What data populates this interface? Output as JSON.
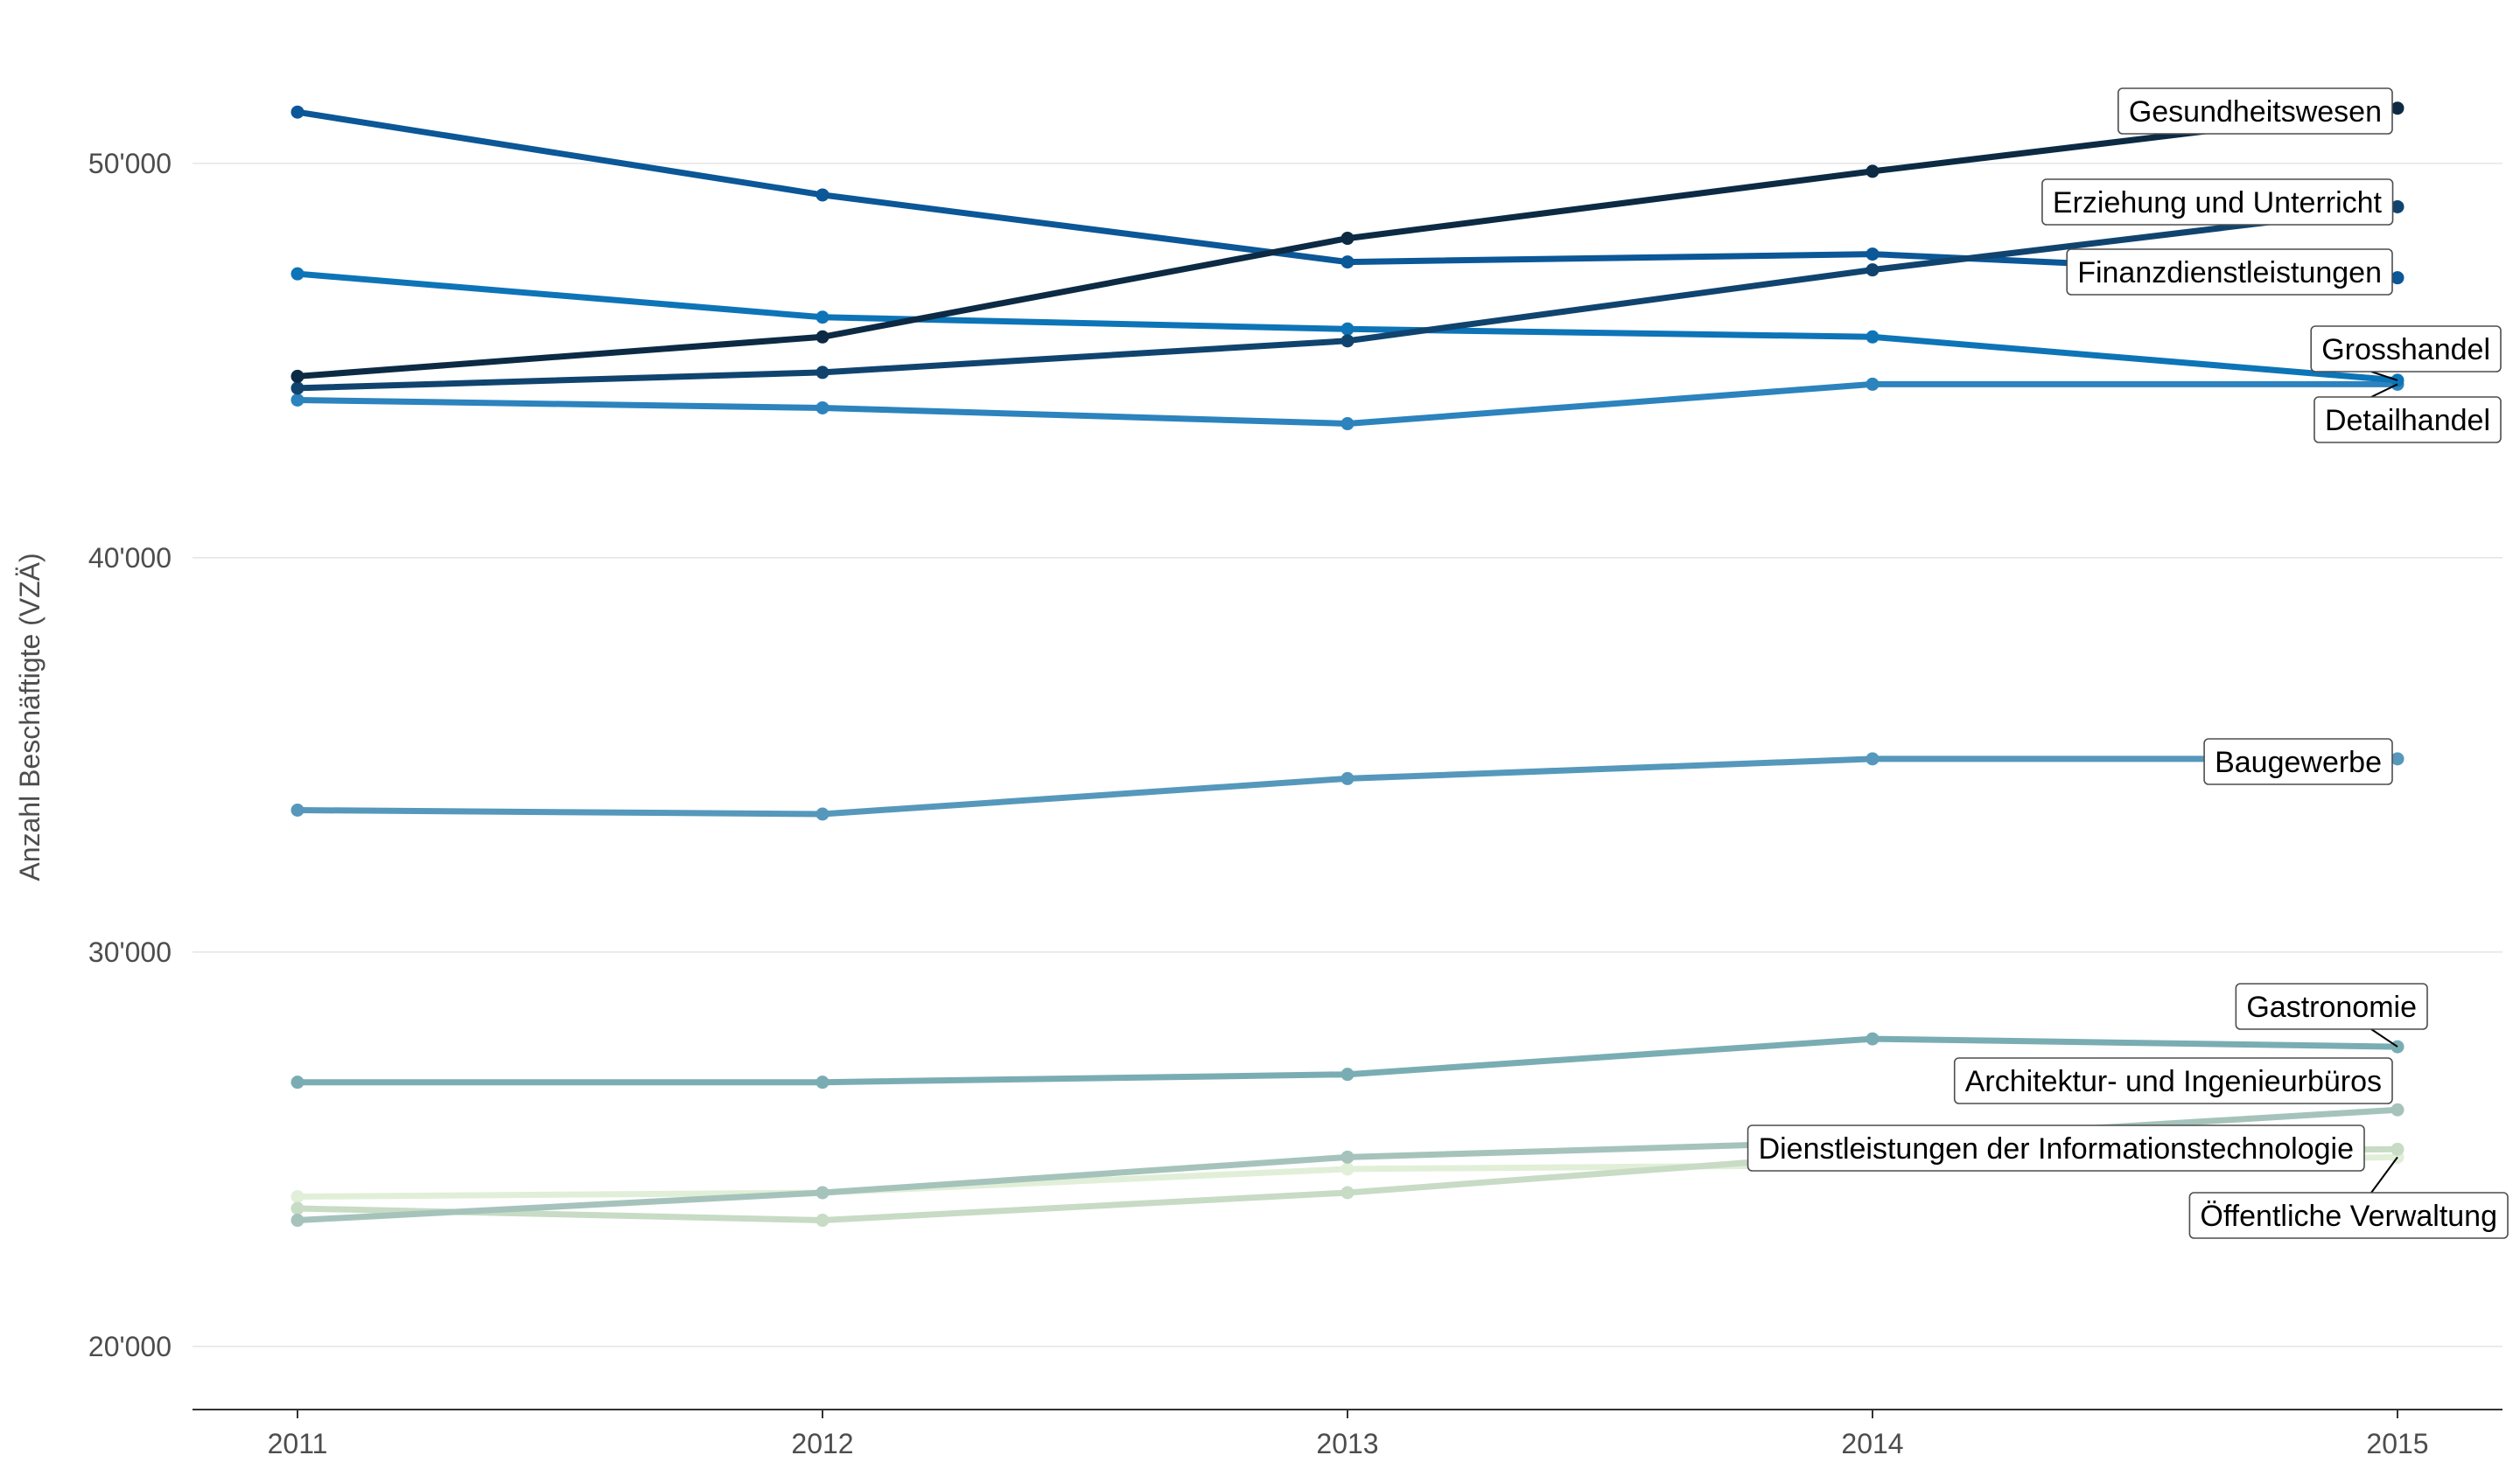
{
  "chart_data": {
    "type": "line",
    "title": "",
    "xlabel": "",
    "ylabel": "Anzahl Beschäftigte (VZÄ)",
    "x": [
      2011,
      2012,
      2013,
      2014,
      2015
    ],
    "x_tick_labels": [
      "2011",
      "2012",
      "2013",
      "2014",
      "2015"
    ],
    "y_ticks": [
      20000,
      30000,
      40000,
      50000
    ],
    "y_tick_labels": [
      "20'000",
      "30'000",
      "40'000",
      "50'000"
    ],
    "ylim": [
      18400,
      53700
    ],
    "xlim": [
      2010.8,
      2015.2
    ],
    "grid": "horizontal major lines",
    "legend": "direct labels at right end of each line",
    "series": [
      {
        "name": "Gesundheitswesen",
        "color": "#0c2a44",
        "values": [
          44600,
          45600,
          48100,
          49800,
          51400
        ]
      },
      {
        "name": "Erziehung und Unterricht",
        "color": "#10446f",
        "values": [
          44300,
          44700,
          45500,
          47300,
          48900
        ]
      },
      {
        "name": "Finanzdienstleistungen",
        "color": "#0b5797",
        "values": [
          51300,
          49200,
          47500,
          47700,
          47100
        ]
      },
      {
        "name": "Grosshandel",
        "color": "#0d74b7",
        "values": [
          47200,
          46100,
          45800,
          45600,
          44500
        ]
      },
      {
        "name": "Detailhandel",
        "color": "#2c83bd",
        "values": [
          44000,
          43800,
          43400,
          44400,
          44400
        ]
      },
      {
        "name": "Baugewerbe",
        "color": "#5598bb",
        "values": [
          33600,
          33500,
          34400,
          34900,
          34900
        ]
      },
      {
        "name": "Gastronomie",
        "color": "#79adb3",
        "values": [
          26700,
          26700,
          26900,
          27800,
          27600
        ]
      },
      {
        "name": "Architektur- und Ingenieurbüros",
        "color": "#a5c3bb",
        "values": [
          23200,
          23900,
          24800,
          25200,
          26000
        ]
      },
      {
        "name": "Dienstleistungen der Informationstechnologie",
        "color": "#c7dbc5",
        "values": [
          23500,
          23200,
          23900,
          24900,
          25000
        ]
      },
      {
        "name": "Öffentliche Verwaltung",
        "color": "#e1efd8",
        "values": [
          23800,
          23900,
          24500,
          24600,
          24800
        ]
      }
    ]
  }
}
